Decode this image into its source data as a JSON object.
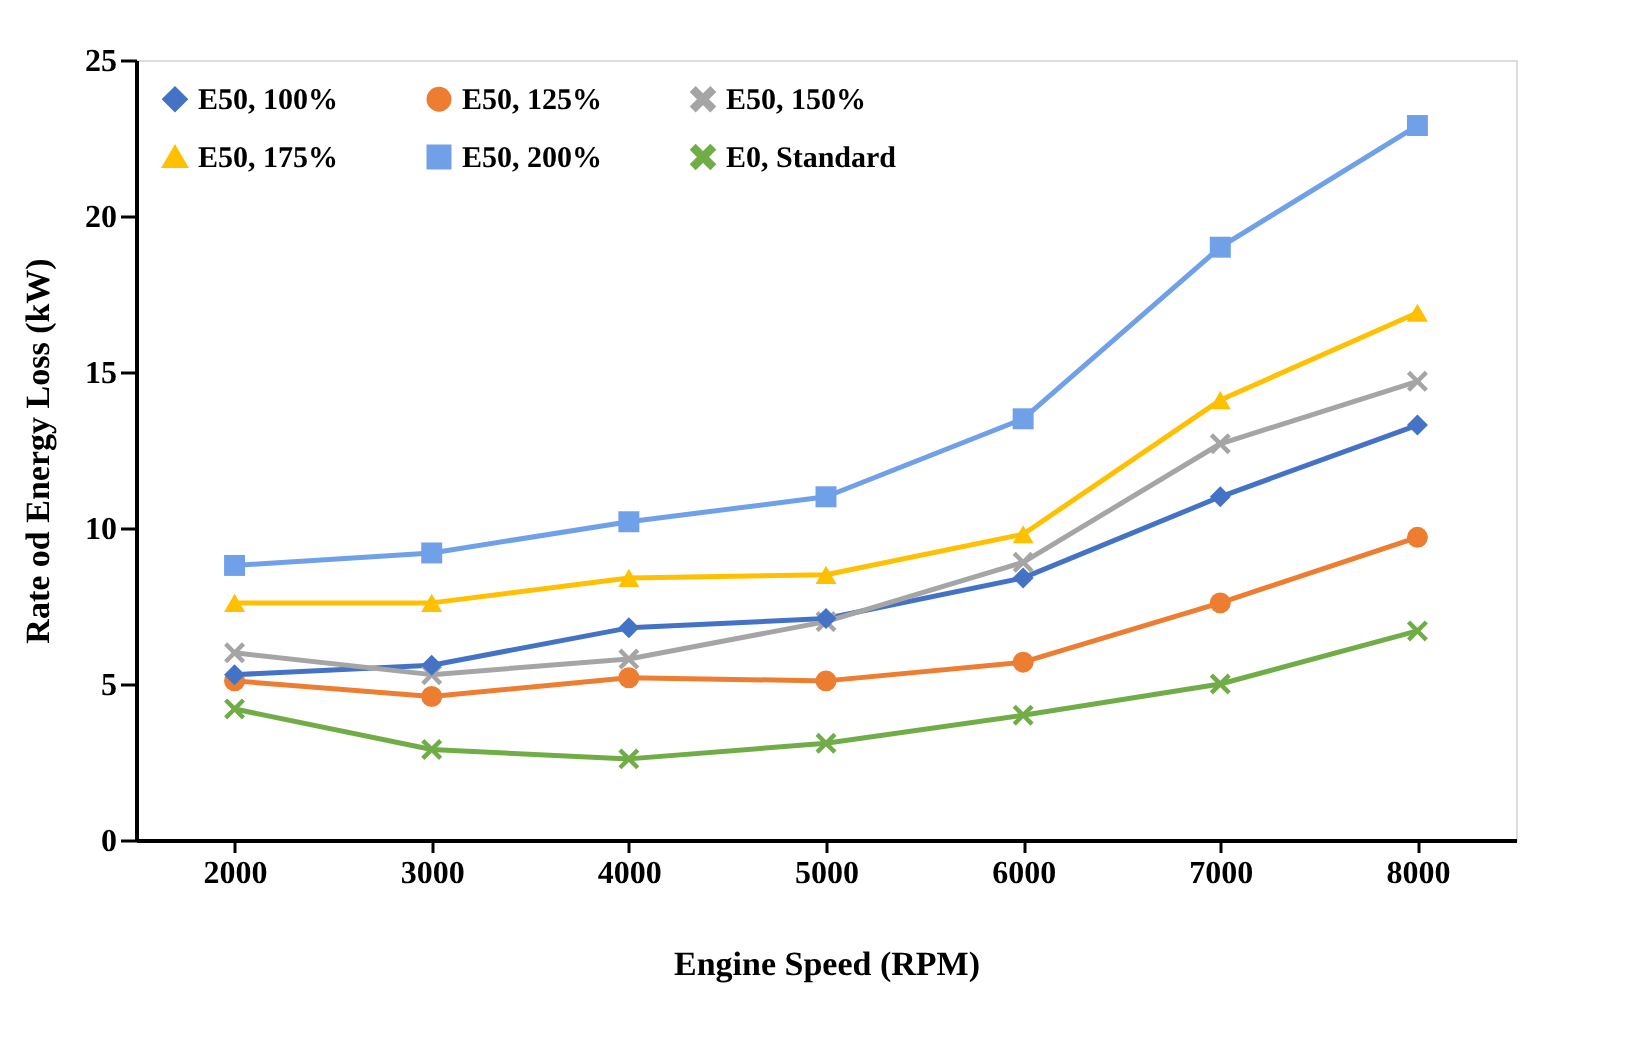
{
  "chart_data": {
    "type": "line",
    "xlabel": "Engine Speed (RPM)",
    "ylabel": "Rate od Energy Loss  (kW)",
    "categories": [
      "2000",
      "3000",
      "4000",
      "5000",
      "6000",
      "7000",
      "8000"
    ],
    "ylim": [
      0,
      25
    ],
    "yticks": [
      0,
      5,
      10,
      15,
      20,
      25
    ],
    "grid": false,
    "legend": "top left",
    "line_style": "solid",
    "series": [
      {
        "name": "E50, 100%",
        "color": "#4472c4",
        "marker": "diamond",
        "values": [
          5.3,
          5.6,
          6.8,
          7.1,
          8.4,
          11.0,
          13.3
        ]
      },
      {
        "name": "E50, 125%",
        "color": "#ed7d31",
        "marker": "circle",
        "values": [
          5.1,
          4.6,
          5.2,
          5.1,
          5.7,
          7.6,
          9.7
        ]
      },
      {
        "name": "E50, 150%",
        "color": "#a5a5a5",
        "marker": "cross",
        "values": [
          6.0,
          5.3,
          5.8,
          7.0,
          8.9,
          12.7,
          14.7
        ]
      },
      {
        "name": "E50, 175%",
        "color": "#ffc000",
        "marker": "triangle",
        "values": [
          7.6,
          7.6,
          8.4,
          8.5,
          9.8,
          14.1,
          16.9
        ]
      },
      {
        "name": "E50, 200%",
        "color": "#6fa0e8",
        "marker": "square",
        "values": [
          8.8,
          9.2,
          10.2,
          11.0,
          13.5,
          19.0,
          22.9
        ]
      },
      {
        "name": "E0, Standard",
        "color": "#70ad47",
        "marker": "cross",
        "values": [
          4.2,
          2.9,
          2.6,
          3.1,
          4.0,
          5.0,
          6.7
        ]
      }
    ]
  }
}
